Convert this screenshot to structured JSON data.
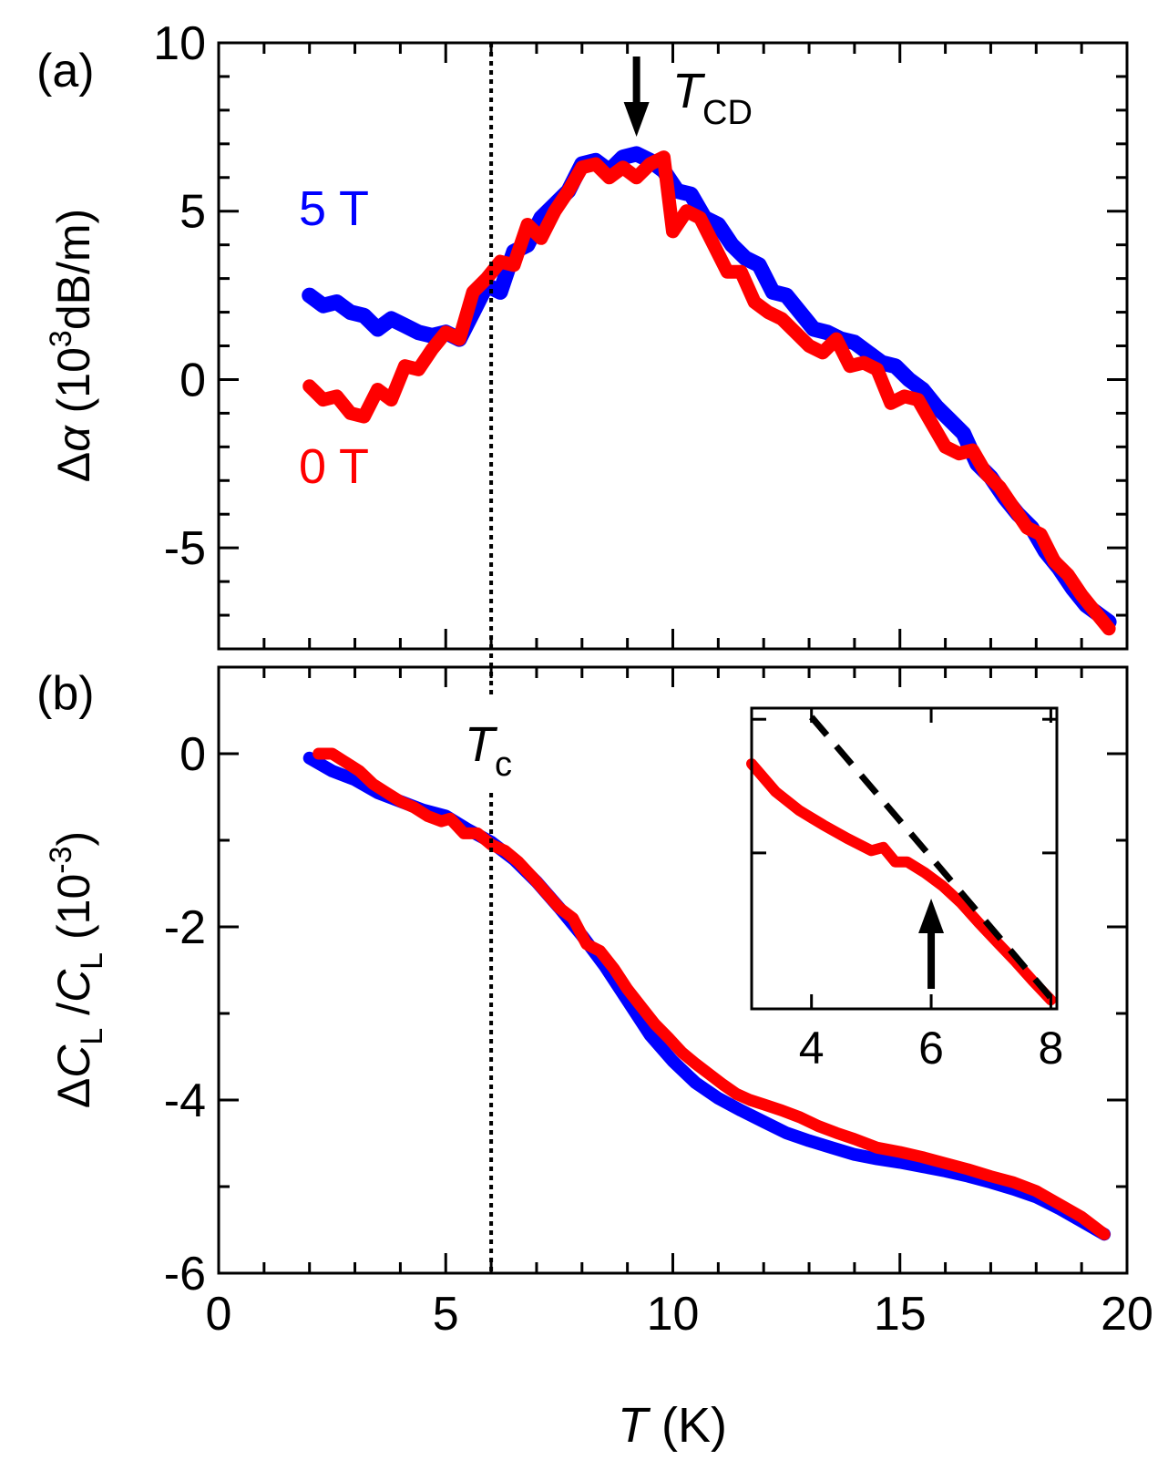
{
  "chart_data": [
    {
      "type": "line",
      "panel_label": "(a)",
      "ylabel": {
        "prefix": "Δ",
        "var": "α",
        "open": " (10",
        "sup": "3",
        "rest": "dB/m)"
      },
      "xlim": [
        0,
        20
      ],
      "ylim": [
        -8,
        10
      ],
      "yticks": [
        10,
        5,
        0,
        -5
      ],
      "ytick_labels": [
        "10",
        "5",
        "0",
        "-5"
      ],
      "annotation": {
        "text": "T",
        "sub": "CD",
        "x": 9.2
      },
      "series": [
        {
          "name": "5 T",
          "color": "#0000ff",
          "x": [
            2.0,
            2.3,
            2.6,
            2.9,
            3.2,
            3.5,
            3.8,
            4.1,
            4.4,
            4.7,
            5.0,
            5.3,
            5.6,
            5.9,
            6.2,
            6.5,
            6.8,
            7.1,
            7.4,
            7.7,
            8.0,
            8.3,
            8.6,
            8.9,
            9.2,
            9.5,
            9.8,
            10.1,
            10.4,
            10.7,
            11.0,
            11.3,
            11.6,
            11.9,
            12.2,
            12.5,
            12.8,
            13.1,
            13.4,
            13.7,
            14.0,
            14.3,
            14.6,
            14.9,
            15.2,
            15.5,
            15.8,
            16.1,
            16.4,
            16.7,
            17.0,
            17.3,
            17.6,
            17.9,
            18.2,
            18.5,
            18.8,
            19.1,
            19.4,
            19.6
          ],
          "y": [
            2.5,
            2.2,
            2.3,
            2.0,
            1.9,
            1.5,
            1.8,
            1.6,
            1.4,
            1.3,
            1.4,
            1.2,
            2.0,
            2.8,
            2.6,
            3.8,
            4.0,
            4.8,
            5.2,
            5.6,
            6.4,
            6.5,
            6.2,
            6.6,
            6.7,
            6.5,
            6.2,
            5.6,
            5.5,
            4.8,
            4.6,
            4.0,
            3.6,
            3.4,
            2.6,
            2.5,
            2.0,
            1.5,
            1.4,
            1.2,
            1.1,
            0.8,
            0.5,
            0.4,
            0.0,
            -0.3,
            -0.8,
            -1.2,
            -1.6,
            -2.5,
            -2.9,
            -3.5,
            -4.0,
            -4.4,
            -5.1,
            -5.6,
            -6.2,
            -6.7,
            -7.0,
            -7.2
          ]
        },
        {
          "name": "0 T",
          "color": "#ff0000",
          "x": [
            2.0,
            2.3,
            2.6,
            2.9,
            3.2,
            3.5,
            3.8,
            4.1,
            4.4,
            4.7,
            5.0,
            5.3,
            5.6,
            5.9,
            6.2,
            6.5,
            6.8,
            7.1,
            7.4,
            7.7,
            8.0,
            8.3,
            8.6,
            8.9,
            9.2,
            9.5,
            9.8,
            10.0,
            10.3,
            10.6,
            10.9,
            11.2,
            11.5,
            11.8,
            12.1,
            12.4,
            12.7,
            13.0,
            13.3,
            13.6,
            13.9,
            14.2,
            14.5,
            14.8,
            15.1,
            15.4,
            15.7,
            16.0,
            16.3,
            16.6,
            16.9,
            17.2,
            17.5,
            17.8,
            18.1,
            18.4,
            18.7,
            19.0,
            19.3,
            19.6
          ],
          "y": [
            -0.2,
            -0.6,
            -0.5,
            -1.0,
            -1.1,
            -0.3,
            -0.6,
            0.4,
            0.3,
            0.9,
            1.4,
            1.2,
            2.6,
            3.0,
            3.5,
            3.4,
            4.6,
            4.2,
            5.0,
            5.6,
            6.3,
            6.4,
            6.0,
            6.3,
            6.0,
            6.4,
            6.6,
            4.4,
            5.0,
            4.8,
            4.0,
            3.2,
            3.2,
            2.3,
            2.0,
            1.8,
            1.4,
            1.0,
            0.8,
            1.2,
            0.4,
            0.5,
            0.3,
            -0.7,
            -0.5,
            -0.6,
            -1.3,
            -2.0,
            -2.2,
            -2.1,
            -2.8,
            -3.2,
            -3.8,
            -4.4,
            -4.6,
            -5.4,
            -5.8,
            -6.4,
            -6.9,
            -7.4
          ]
        }
      ]
    },
    {
      "type": "line",
      "panel_label": "(b)",
      "xlabel": {
        "var": "T",
        "rest": " (K)"
      },
      "ylabel": {
        "prefix": "Δ",
        "var1": "C",
        "sub1": "L",
        "slash": " /",
        "var2": "C",
        "sub2": "L",
        "open": " (10",
        "sup": "-3",
        "close": ")"
      },
      "xlim": [
        0,
        20
      ],
      "ylim": [
        -6,
        1
      ],
      "xticks": [
        0,
        5,
        10,
        15,
        20
      ],
      "xtick_labels": [
        "0",
        "5",
        "10",
        "15",
        "20"
      ],
      "yticks": [
        0,
        -2,
        -4,
        -6
      ],
      "ytick_labels": [
        "0",
        "-2",
        "-4",
        "-6"
      ],
      "annotation": {
        "text": "T",
        "sub": "c",
        "x": 6.0
      },
      "series": [
        {
          "name": "5 T",
          "color": "#0000ff",
          "x": [
            2.0,
            2.5,
            3.0,
            3.5,
            4.0,
            4.5,
            5.0,
            5.5,
            6.0,
            6.5,
            7.0,
            7.5,
            8.0,
            8.5,
            9.0,
            9.5,
            10.0,
            10.5,
            11.0,
            11.5,
            12.0,
            12.5,
            13.0,
            13.5,
            14.0,
            14.5,
            15.0,
            15.5,
            16.0,
            16.5,
            17.0,
            17.5,
            18.0,
            18.5,
            19.0,
            19.5
          ],
          "y": [
            -0.05,
            -0.2,
            -0.3,
            -0.45,
            -0.55,
            -0.65,
            -0.72,
            -0.88,
            -1.02,
            -1.22,
            -1.48,
            -1.78,
            -2.1,
            -2.45,
            -2.85,
            -3.25,
            -3.55,
            -3.8,
            -3.98,
            -4.12,
            -4.25,
            -4.38,
            -4.47,
            -4.55,
            -4.63,
            -4.68,
            -4.72,
            -4.77,
            -4.82,
            -4.88,
            -4.95,
            -5.03,
            -5.12,
            -5.25,
            -5.4,
            -5.55
          ]
        },
        {
          "name": "0 T",
          "color": "#ff0000",
          "x": [
            2.2,
            2.5,
            2.8,
            3.1,
            3.4,
            3.7,
            4.0,
            4.3,
            4.6,
            4.9,
            5.1,
            5.4,
            5.7,
            6.0,
            6.3,
            6.6,
            6.9,
            7.2,
            7.5,
            7.8,
            8.1,
            8.4,
            8.7,
            9.0,
            9.3,
            9.6,
            9.9,
            10.2,
            10.5,
            10.8,
            11.1,
            11.4,
            11.7,
            12.0,
            12.4,
            12.8,
            13.2,
            13.6,
            14.0,
            14.5,
            15.0,
            15.5,
            16.0,
            16.5,
            17.0,
            17.5,
            18.0,
            18.5,
            19.0,
            19.5
          ],
          "y": [
            0.0,
            0.0,
            -0.1,
            -0.2,
            -0.35,
            -0.45,
            -0.55,
            -0.62,
            -0.72,
            -0.78,
            -0.75,
            -0.92,
            -0.92,
            -1.05,
            -1.12,
            -1.25,
            -1.42,
            -1.6,
            -1.78,
            -1.9,
            -2.2,
            -2.28,
            -2.48,
            -2.72,
            -2.92,
            -3.12,
            -3.28,
            -3.45,
            -3.58,
            -3.7,
            -3.82,
            -3.93,
            -4.0,
            -4.05,
            -4.12,
            -4.2,
            -4.3,
            -4.38,
            -4.45,
            -4.55,
            -4.6,
            -4.66,
            -4.73,
            -4.8,
            -4.88,
            -4.95,
            -5.05,
            -5.2,
            -5.35,
            -5.55
          ]
        }
      ],
      "inset": {
        "xlim": [
          3,
          8.1
        ],
        "ylim": [
          -2.2,
          0.5
        ],
        "xticks": [
          4,
          6,
          8
        ],
        "xtick_labels": [
          "4",
          "6",
          "8"
        ],
        "ytick_values": [
          0.4,
          -0.8
        ],
        "curve": {
          "x": [
            3.0,
            3.4,
            3.8,
            4.2,
            4.6,
            5.0,
            5.2,
            5.4,
            5.6,
            5.9,
            6.2,
            6.5,
            6.8,
            7.1,
            7.4,
            7.7,
            8.0
          ],
          "y": [
            0.0,
            -0.25,
            -0.42,
            -0.55,
            -0.67,
            -0.78,
            -0.75,
            -0.88,
            -0.88,
            -0.98,
            -1.1,
            -1.25,
            -1.43,
            -1.6,
            -1.77,
            -1.95,
            -2.12
          ]
        },
        "dashed_fit": {
          "x": [
            4.0,
            8.0
          ],
          "y": [
            0.42,
            -2.1
          ]
        },
        "arrow_x": 6.0
      }
    }
  ],
  "legend": {
    "label_5T": "5 T",
    "label_0T": "0 T"
  }
}
